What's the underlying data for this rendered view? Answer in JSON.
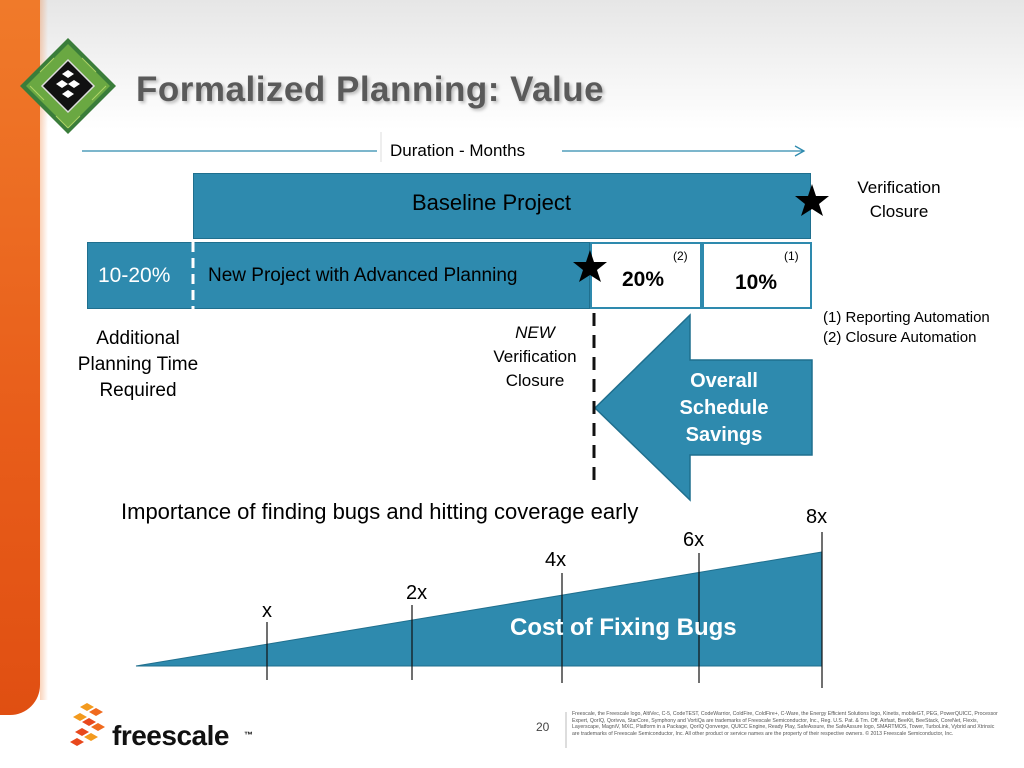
{
  "slide": {
    "title": "Formalized Planning:  Value",
    "page_number": "20"
  },
  "timeline": {
    "duration_label": "Duration - Months"
  },
  "bars": {
    "baseline_label": "Baseline Project",
    "new_project_label": "New Project with Advanced Planning",
    "planning_overhead": "10-20%",
    "closure_saving": "20%",
    "closure_ref": "(2)",
    "reporting_saving": "10%",
    "reporting_ref": "(1)"
  },
  "annotations": {
    "verification_closure": [
      "Verification",
      "Closure"
    ],
    "legend": [
      "(1) Reporting Automation",
      "(2) Closure Automation"
    ],
    "additional_planning": [
      "Additional",
      "Planning Time",
      "Required"
    ],
    "new_verification": {
      "new": "NEW",
      "lines": [
        "Verification",
        "Closure"
      ]
    },
    "overall_savings": [
      "Overall",
      "Schedule",
      "Savings"
    ]
  },
  "cost_chart": {
    "heading": "Importance of finding bugs and hitting coverage early",
    "wedge_label": "Cost of Fixing Bugs",
    "multipliers": [
      "x",
      "2x",
      "4x",
      "6x",
      "8x"
    ]
  },
  "footer": {
    "brand": "freescale",
    "trademark": "™",
    "legal": "Freescale, the Freescale logo, AltiVec, C-5, CodeTEST, CodeWarrior, ColdFire, ColdFire+, C-Ware, the Energy Efficient Solutions logo, Kinetis, mobileGT, PEG, PowerQUICC, Processor Expert, QorIQ, Qorivva, StarCore, Symphony and VortiQa are trademarks of Freescale Semiconductor, Inc., Reg. U.S. Pat. & Tm. Off. Airfast, BeeKit, BeeStack, CoreNet, Flexis, Layerscape, MagniV, MXC, Platform in a Package, QorIQ Qonverge, QUICC Engine, Ready Play, SafeAssure, the SafeAssure logo, SMARTMOS, Tower, TurboLink, Vybrid and Xtrinsic are trademarks of Freescale Semiconductor, Inc. All other product or service names are the property of their respective owners. © 2013 Freescale Semiconductor, Inc."
  },
  "colors": {
    "bar_blue": "#2e8aae",
    "accent_orange": "#e85d1a",
    "title_gray": "#5a5a5a"
  }
}
